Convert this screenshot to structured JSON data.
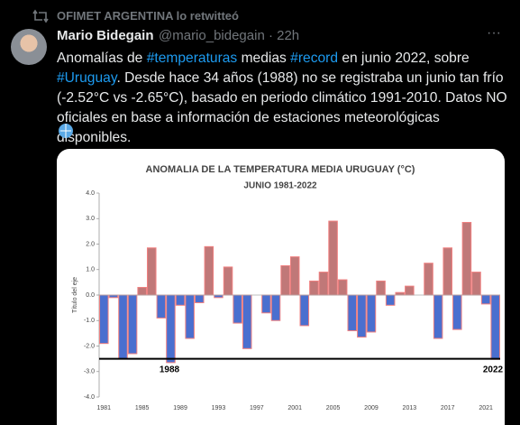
{
  "tweet": {
    "retweeted_by": "OFIMET ARGENTINA lo retwitteó",
    "author_name": "Mario Bidegain",
    "author_meta": "@mario_bidegain · 22h",
    "more": "···",
    "text": [
      "Anomalías de ",
      "#temperaturas",
      " medias ",
      "#record",
      " en junio 2022, sobre ",
      "#Uruguay",
      ". Desde hace 34 años (1988) no se registraba un junio tan frío (-2.52°C vs -2.65°C), basado en periodo climático 1991-2010. Datos NO oficiales en base a información de estaciones meteorológicas disponibles."
    ],
    "hashtags": [
      1,
      3,
      5
    ]
  },
  "chart_data": {
    "type": "bar",
    "title": "ANOMALIA DE LA TEMPERATURA MEDIA URUGUAY (°C)",
    "subtitle": "JUNIO 1981-2022",
    "y_label": "Título del eje",
    "categories": [
      "1981",
      null,
      null,
      null,
      "1985",
      null,
      null,
      null,
      "1989",
      null,
      null,
      null,
      "1993",
      null,
      null,
      null,
      "1997",
      null,
      null,
      null,
      "2001",
      null,
      null,
      null,
      "2005",
      null,
      null,
      null,
      "2009",
      null,
      null,
      null,
      "2013",
      null,
      null,
      null,
      "2017",
      null,
      null,
      null,
      "2021",
      null
    ],
    "values": [
      -1.9,
      -0.1,
      -2.5,
      -2.3,
      0.3,
      1.85,
      -0.9,
      -2.65,
      -0.4,
      -1.7,
      -0.3,
      1.9,
      -0.1,
      1.1,
      -1.1,
      -2.1,
      0.0,
      -0.7,
      -1.0,
      1.15,
      1.5,
      -1.2,
      0.55,
      0.9,
      2.9,
      0.6,
      -1.4,
      -1.65,
      -1.45,
      0.55,
      -0.4,
      0.1,
      0.35,
      0.0,
      1.25,
      -1.7,
      1.85,
      -1.35,
      2.85,
      0.9,
      -0.35,
      -2.52
    ],
    "positive_color": "#c07878",
    "negative_color": "#4a6fcf",
    "edge_color": "#f08080",
    "reference_line": -2.5,
    "annotations": [
      "1988",
      "2022"
    ],
    "ylim": [
      -4,
      4
    ],
    "yticks": [
      {
        "value": 4,
        "label": "4.0"
      },
      {
        "value": 3,
        "label": "3.0"
      },
      {
        "value": 2,
        "label": "2.0"
      },
      {
        "value": 1,
        "label": "1.0"
      },
      {
        "value": 0,
        "label": "0.0"
      },
      {
        "value": -1,
        "label": "-1.0"
      },
      {
        "value": -2,
        "label": "-2.0"
      },
      {
        "value": -3,
        "label": "-3.0"
      },
      {
        "value": -4,
        "label": "-4.0"
      }
    ],
    "grid": false
  }
}
